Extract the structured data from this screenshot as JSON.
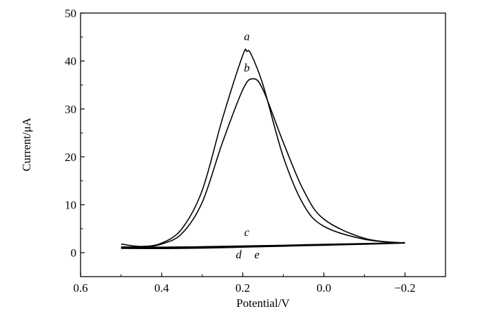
{
  "chart_data": {
    "type": "line",
    "title": "",
    "xlabel": "Potential/V",
    "ylabel": "Current/μA",
    "xlim": [
      0.6,
      -0.3
    ],
    "ylim": [
      -5,
      50
    ],
    "x_reversed": true,
    "grid": false,
    "x_ticks": [
      0.6,
      0.4,
      0.2,
      0.0,
      -0.2
    ],
    "x_tick_labels": [
      "0.6",
      "0.4",
      "0.2",
      "0.0",
      "−0.2"
    ],
    "y_ticks": [
      0,
      10,
      20,
      30,
      40,
      50
    ],
    "y_tick_labels": [
      "0",
      "10",
      "20",
      "30",
      "40",
      "50"
    ],
    "series": [
      {
        "name": "a",
        "x": [
          0.5,
          0.45,
          0.4,
          0.35,
          0.3,
          0.25,
          0.2,
          0.19,
          0.18,
          0.15,
          0.1,
          0.05,
          0.0,
          -0.1,
          -0.2
        ],
        "y": [
          1.8,
          1.3,
          2.0,
          5.0,
          13.0,
          28.0,
          41.2,
          42.0,
          41.5,
          35.0,
          20.0,
          10.0,
          5.5,
          2.8,
          2.0
        ]
      },
      {
        "name": "b",
        "x": [
          0.5,
          0.45,
          0.4,
          0.35,
          0.3,
          0.25,
          0.2,
          0.175,
          0.15,
          0.1,
          0.05,
          0.0,
          -0.1,
          -0.2
        ],
        "y": [
          1.0,
          1.1,
          1.8,
          4.0,
          10.5,
          23.0,
          34.0,
          36.3,
          34.0,
          23.0,
          13.0,
          7.0,
          3.0,
          2.0
        ]
      },
      {
        "name": "c",
        "x": [
          0.5,
          0.4,
          0.3,
          0.2,
          0.1,
          0.0,
          -0.1,
          -0.2
        ],
        "y": [
          1.2,
          1.15,
          1.25,
          1.4,
          1.55,
          1.75,
          1.9,
          2.1
        ]
      },
      {
        "name": "d",
        "x": [
          0.5,
          0.4,
          0.3,
          0.2,
          0.1,
          0.0,
          -0.1,
          -0.2
        ],
        "y": [
          0.9,
          0.85,
          0.95,
          1.15,
          1.35,
          1.55,
          1.75,
          2.0
        ]
      },
      {
        "name": "e",
        "x": [
          0.5,
          0.4,
          0.3,
          0.2,
          0.1,
          0.0,
          -0.1,
          -0.2
        ],
        "y": [
          1.0,
          0.95,
          1.05,
          1.25,
          1.45,
          1.65,
          1.85,
          2.05
        ]
      }
    ],
    "annotations": [
      {
        "text": "a",
        "x": 0.19,
        "y": 44.3
      },
      {
        "text": "b",
        "x": 0.19,
        "y": 37.8
      },
      {
        "text": "c",
        "x": 0.19,
        "y": 3.5
      },
      {
        "text": "d",
        "x": 0.21,
        "y": -1.2
      },
      {
        "text": "e",
        "x": 0.165,
        "y": -1.2
      }
    ]
  }
}
